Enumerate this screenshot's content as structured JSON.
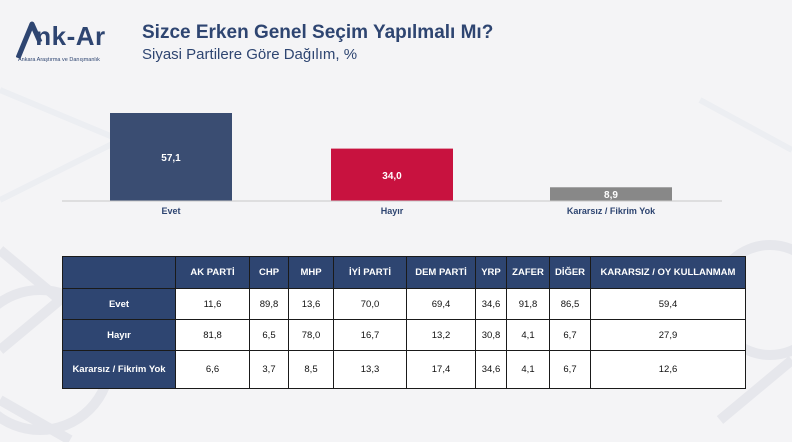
{
  "brand": {
    "name": "Ank-Ar",
    "tagline": "Ankara Araştırma ve Danışmanlık"
  },
  "colors": {
    "primary": "#2e4571",
    "evet": "#3a4d72",
    "hayir": "#c8123f",
    "kararsiz": "#888888"
  },
  "chart_data": [
    {
      "type": "bar",
      "title": "Sizce Erken Genel Seçim Yapılmalı Mı?",
      "subtitle": "Siyasi Partilere Göre Dağılım, %",
      "categories": [
        "Evet",
        "Hayır",
        "Kararsız / Fikrim Yok"
      ],
      "values": [
        57.1,
        34.0,
        8.9
      ],
      "value_labels": [
        "57,1",
        "34,0",
        "8,9"
      ],
      "colors": [
        "#3a4d72",
        "#c8123f",
        "#888888"
      ],
      "ylim": [
        0,
        60
      ],
      "grid": false
    },
    {
      "type": "table",
      "columns": [
        "AK PARTİ",
        "CHP",
        "MHP",
        "İYİ PARTİ",
        "DEM PARTİ",
        "YRP",
        "ZAFER",
        "DİĞER",
        "KARARSIZ / OY KULLANMAM"
      ],
      "rows": [
        {
          "label": "Evet",
          "values": [
            "11,6",
            "89,8",
            "13,6",
            "70,0",
            "69,4",
            "34,6",
            "91,8",
            "86,5",
            "59,4"
          ]
        },
        {
          "label": "Hayır",
          "values": [
            "81,8",
            "6,5",
            "78,0",
            "16,7",
            "13,2",
            "30,8",
            "4,1",
            "6,7",
            "27,9"
          ]
        },
        {
          "label": "Kararsız / Fikrim Yok",
          "values": [
            "6,6",
            "3,7",
            "8,5",
            "13,3",
            "17,4",
            "34,6",
            "4,1",
            "6,7",
            "12,6"
          ]
        }
      ]
    }
  ]
}
